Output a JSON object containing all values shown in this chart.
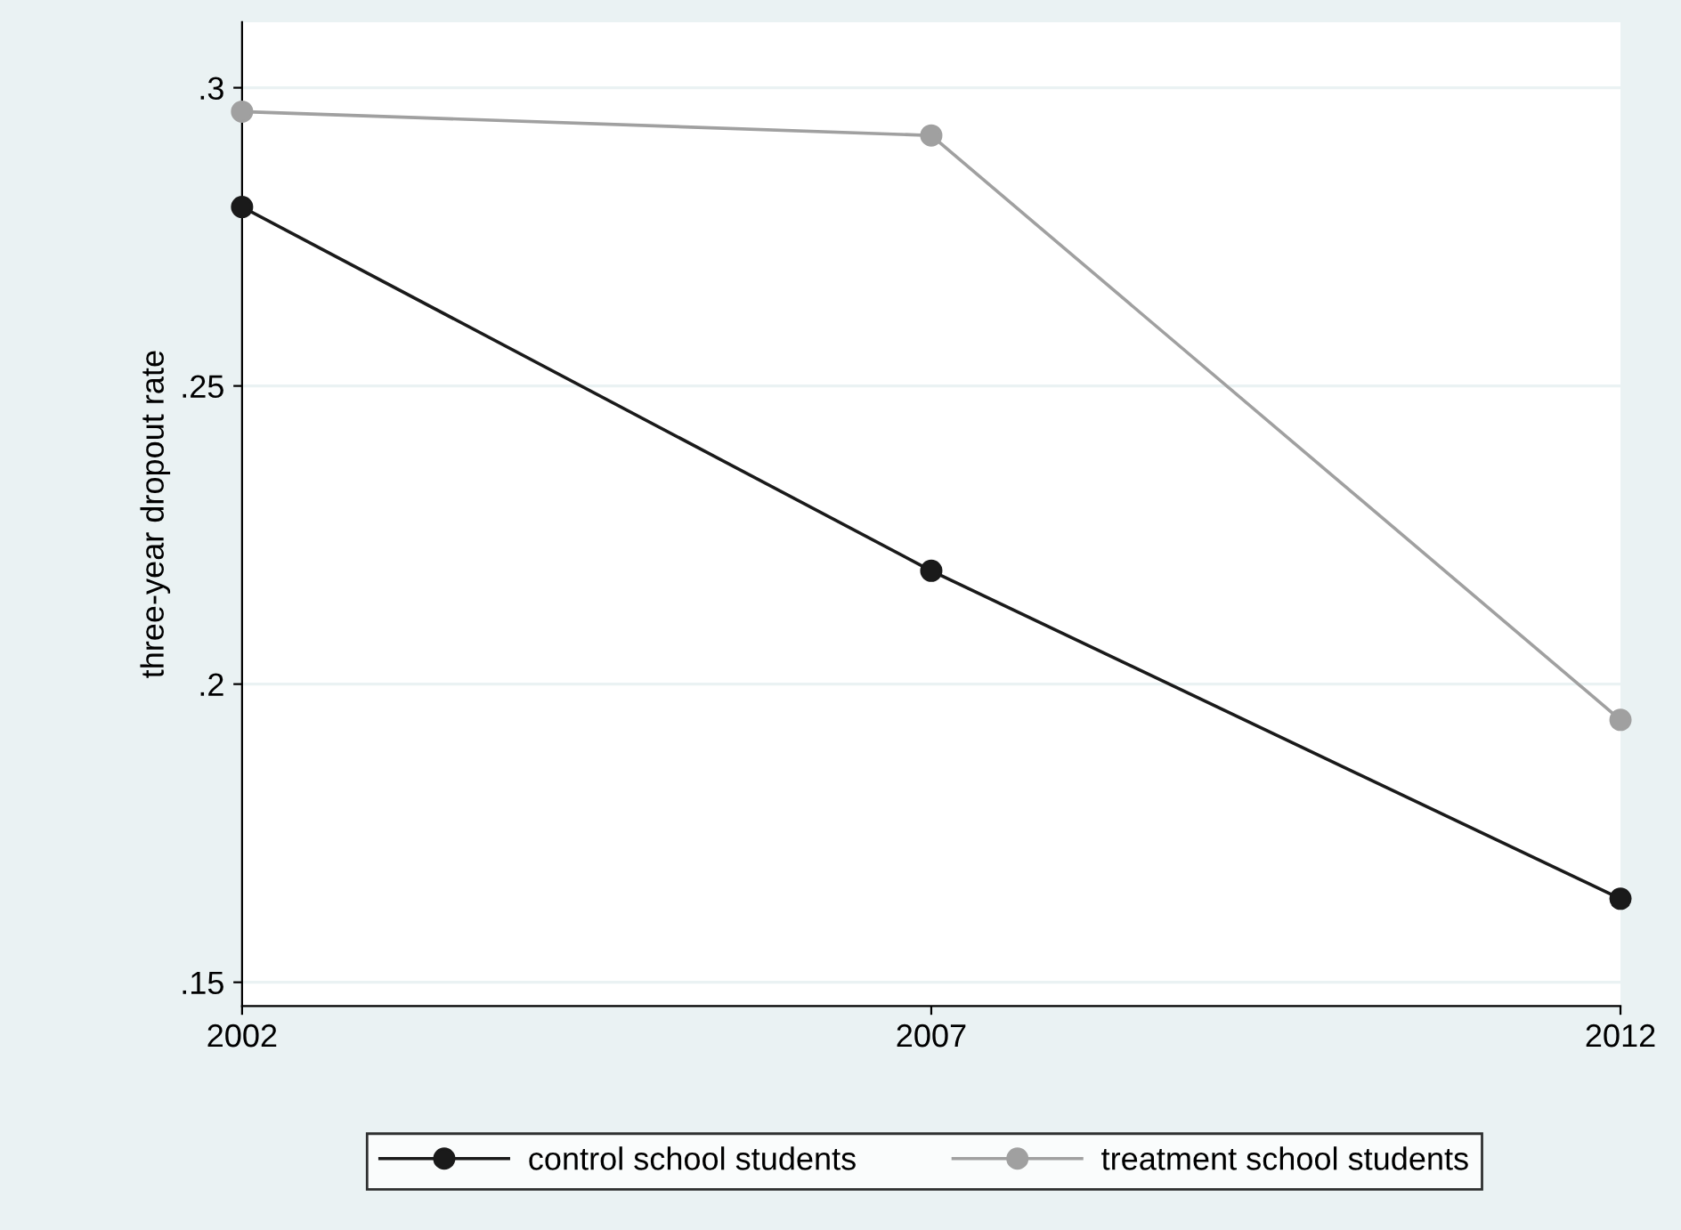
{
  "chart_data": {
    "type": "line",
    "ylabel": "three-year dropout rate",
    "x": [
      2002,
      2007,
      2012
    ],
    "series": [
      {
        "name": "control school students",
        "color": "#1a1a1a",
        "values": [
          0.28,
          0.219,
          0.164
        ]
      },
      {
        "name": "treatment school students",
        "color": "#a0a0a0",
        "values": [
          0.296,
          0.292,
          0.194
        ]
      }
    ],
    "xlim": [
      2002,
      2012
    ],
    "xticks": [
      2002,
      2007,
      2012
    ],
    "ylim": [
      0.146,
      0.311
    ],
    "yticks": [
      {
        "value": 0.15,
        "label": ".15"
      },
      {
        "value": 0.2,
        "label": ".2"
      },
      {
        "value": 0.25,
        "label": ".25"
      },
      {
        "value": 0.3,
        "label": ".3"
      }
    ],
    "grid": "y",
    "legend": "bottom",
    "marker": "circle",
    "line_style": "solid"
  }
}
